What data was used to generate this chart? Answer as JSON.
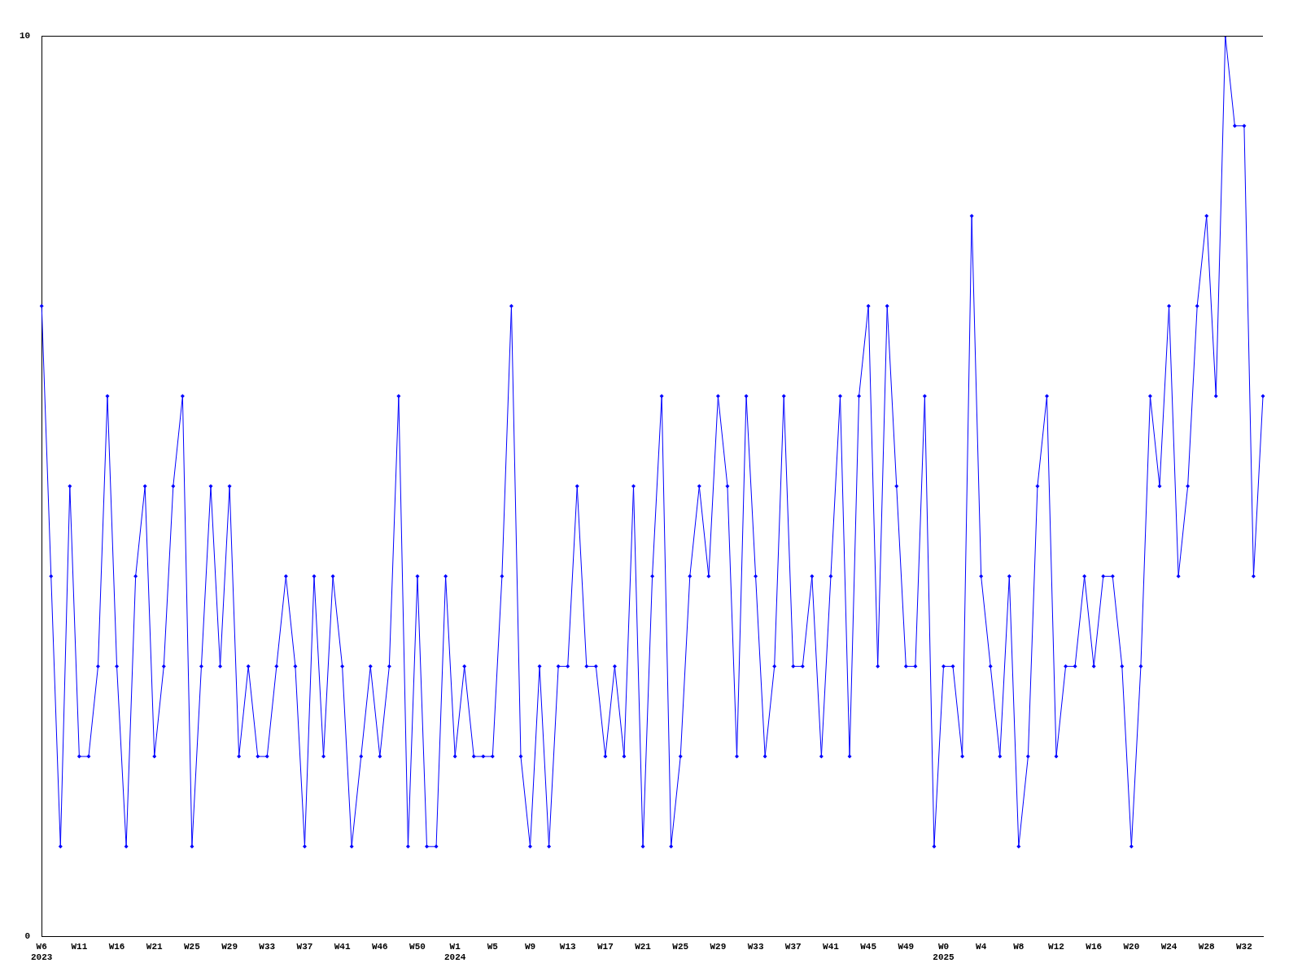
{
  "chart_data": {
    "type": "line",
    "categories": [
      "W6\n2023",
      null,
      null,
      null,
      "W11",
      null,
      null,
      null,
      "W16",
      null,
      null,
      null,
      "W21",
      null,
      null,
      null,
      "W25",
      null,
      null,
      null,
      "W29",
      null,
      null,
      null,
      "W33",
      null,
      null,
      null,
      "W37",
      null,
      null,
      null,
      "W41",
      null,
      null,
      null,
      "W46",
      null,
      null,
      null,
      "W50",
      null,
      null,
      null,
      "W1\n2024",
      null,
      null,
      null,
      "W5",
      null,
      null,
      null,
      "W9",
      null,
      null,
      null,
      "W13",
      null,
      null,
      null,
      "W17",
      null,
      null,
      null,
      "W21",
      null,
      null,
      null,
      "W25",
      null,
      null,
      null,
      "W29",
      null,
      null,
      null,
      "W33",
      null,
      null,
      null,
      "W37",
      null,
      null,
      null,
      "W41",
      null,
      null,
      null,
      "W45",
      null,
      null,
      null,
      "W49",
      null,
      null,
      null,
      "W0\n2025",
      null,
      null,
      null,
      "W4",
      null,
      null,
      null,
      "W8",
      null,
      null,
      null,
      "W12",
      null,
      null,
      null,
      "W16",
      null,
      null,
      null,
      "W20",
      null,
      null,
      null,
      "W24",
      null,
      null,
      null,
      "W28",
      null,
      null,
      null,
      "W32",
      null,
      null
    ],
    "series": [
      {
        "color": "#0000ff",
        "values": [
          7,
          4,
          1,
          5,
          2,
          2,
          3,
          6,
          3,
          1,
          4,
          5,
          2,
          3,
          5,
          6,
          1,
          3,
          5,
          3,
          5,
          2,
          3,
          2,
          2,
          3,
          4,
          3,
          1,
          4,
          2,
          4,
          3,
          1,
          2,
          3,
          2,
          3,
          6,
          1,
          4,
          1,
          1,
          4,
          2,
          3,
          2,
          2,
          2,
          4,
          7,
          2,
          1,
          3,
          1,
          3,
          3,
          5,
          3,
          3,
          2,
          3,
          2,
          5,
          1,
          4,
          6,
          1,
          2,
          4,
          5,
          4,
          6,
          5,
          2,
          6,
          4,
          2,
          3,
          6,
          3,
          3,
          4,
          2,
          4,
          6,
          2,
          6,
          7,
          3,
          7,
          5,
          3,
          3,
          6,
          1,
          3,
          3,
          2,
          8,
          4,
          3,
          2,
          4,
          1,
          2,
          5,
          6,
          2,
          3,
          3,
          4,
          3,
          4,
          4,
          3,
          1,
          3,
          6,
          5,
          7,
          4,
          5,
          7,
          8,
          6,
          10,
          9,
          9,
          4,
          6
        ]
      }
    ],
    "ylim": [
      0,
      10
    ],
    "yticks": [
      0,
      10
    ],
    "grid": false,
    "legend": false,
    "marker": "diamond",
    "line_style": "solid"
  }
}
